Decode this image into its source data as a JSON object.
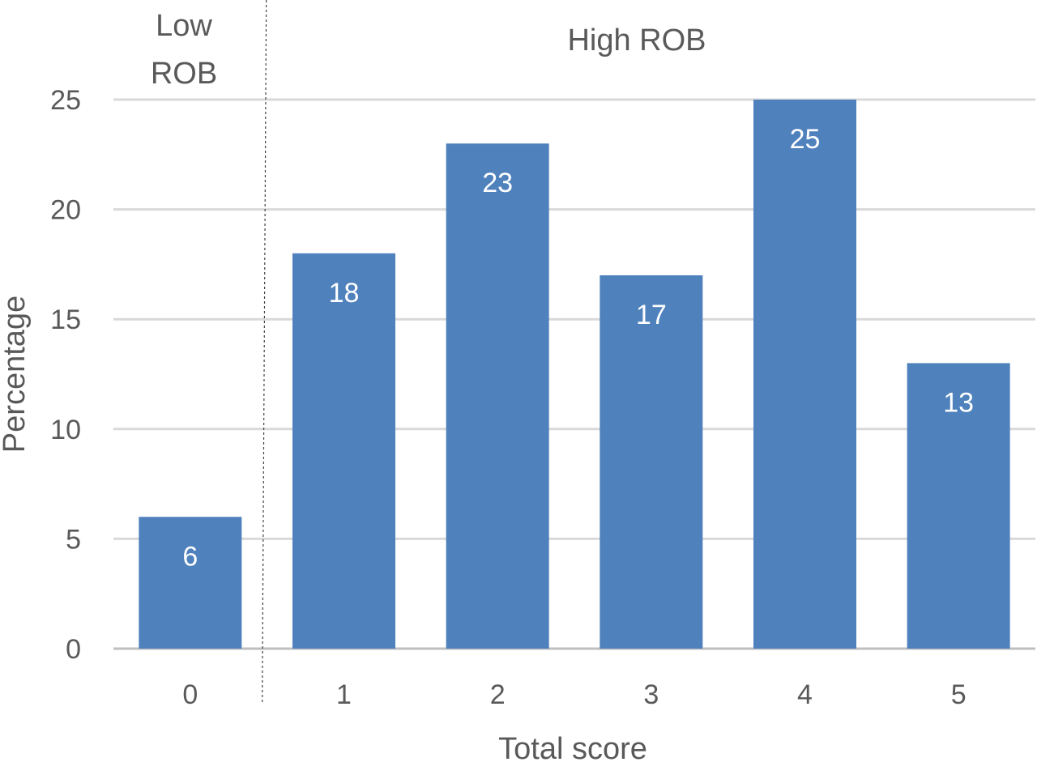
{
  "chart_data": {
    "type": "bar",
    "categories": [
      "0",
      "1",
      "2",
      "3",
      "4",
      "5"
    ],
    "values": [
      6,
      18,
      23,
      17,
      25,
      13
    ],
    "xlabel": "Total score",
    "ylabel": "Percentage",
    "ylim": [
      0,
      25
    ],
    "yticks": [
      0,
      5,
      10,
      15,
      20,
      25
    ],
    "grid": true,
    "legend": "none",
    "bar_color": "#4F81BD",
    "regions": [
      {
        "label_lines": [
          "Low",
          "ROB"
        ],
        "categories": [
          "0"
        ]
      },
      {
        "label_lines": [
          "High ROB"
        ],
        "categories": [
          "1",
          "2",
          "3",
          "4",
          "5"
        ]
      }
    ],
    "data_labels": [
      "6",
      "18",
      "23",
      "17",
      "25",
      "13"
    ]
  }
}
